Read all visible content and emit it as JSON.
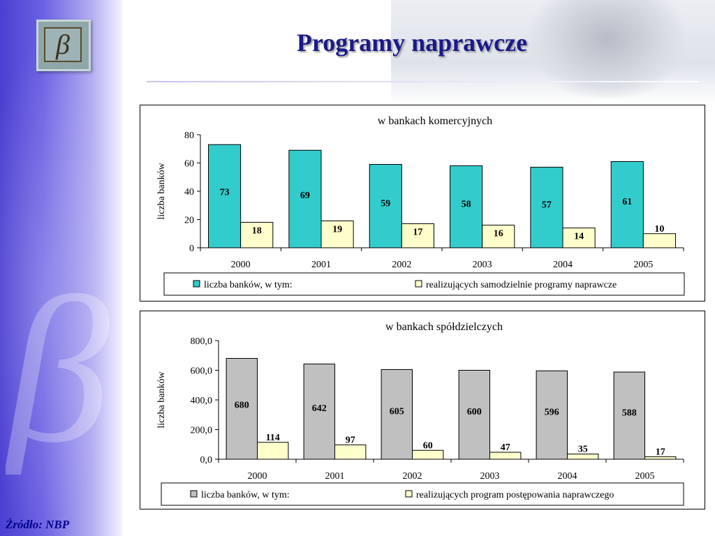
{
  "slide": {
    "title": "Programy naprawcze",
    "source": "Źródło: NBP",
    "logo_glyph": "β",
    "watermark_glyph": "β"
  },
  "colors": {
    "title": "#1a1a8a",
    "teal": "#33cccc",
    "cream": "#ffffcc",
    "gray": "#c0c0c0"
  },
  "chart_data": [
    {
      "type": "bar",
      "title": "w bankach komercyjnych",
      "ylabel": "liczba banków",
      "xlabel": "",
      "categories": [
        "2000",
        "2001",
        "2002",
        "2003",
        "2004",
        "2005"
      ],
      "ylim": [
        0,
        80
      ],
      "yticks": [
        "0",
        "20",
        "40",
        "60",
        "80"
      ],
      "series": [
        {
          "name": "liczba banków, w tym:",
          "color": "#33cccc",
          "values": [
            73,
            69,
            59,
            58,
            57,
            61
          ]
        },
        {
          "name": "realizujących samodzielnie programy naprawcze",
          "color": "#ffffcc",
          "values": [
            18,
            19,
            17,
            16,
            14,
            10
          ]
        }
      ],
      "legend": "bottom",
      "grid": false
    },
    {
      "type": "bar",
      "title": "w bankach spółdzielczych",
      "ylabel": "liczba banków",
      "xlabel": "",
      "categories": [
        "2000",
        "2001",
        "2002",
        "2003",
        "2004",
        "2005"
      ],
      "ylim": [
        0,
        800
      ],
      "yticks": [
        "0,0",
        "200,0",
        "400,0",
        "600,0",
        "800,0"
      ],
      "series": [
        {
          "name": "liczba banków, w tym:",
          "color": "#c0c0c0",
          "values": [
            680,
            642,
            605,
            600,
            596,
            588
          ]
        },
        {
          "name": "realizujących program postępowania naprawczego",
          "color": "#ffffcc",
          "values": [
            114,
            97,
            60,
            47,
            35,
            17
          ]
        }
      ],
      "legend": "bottom",
      "grid": false
    }
  ]
}
